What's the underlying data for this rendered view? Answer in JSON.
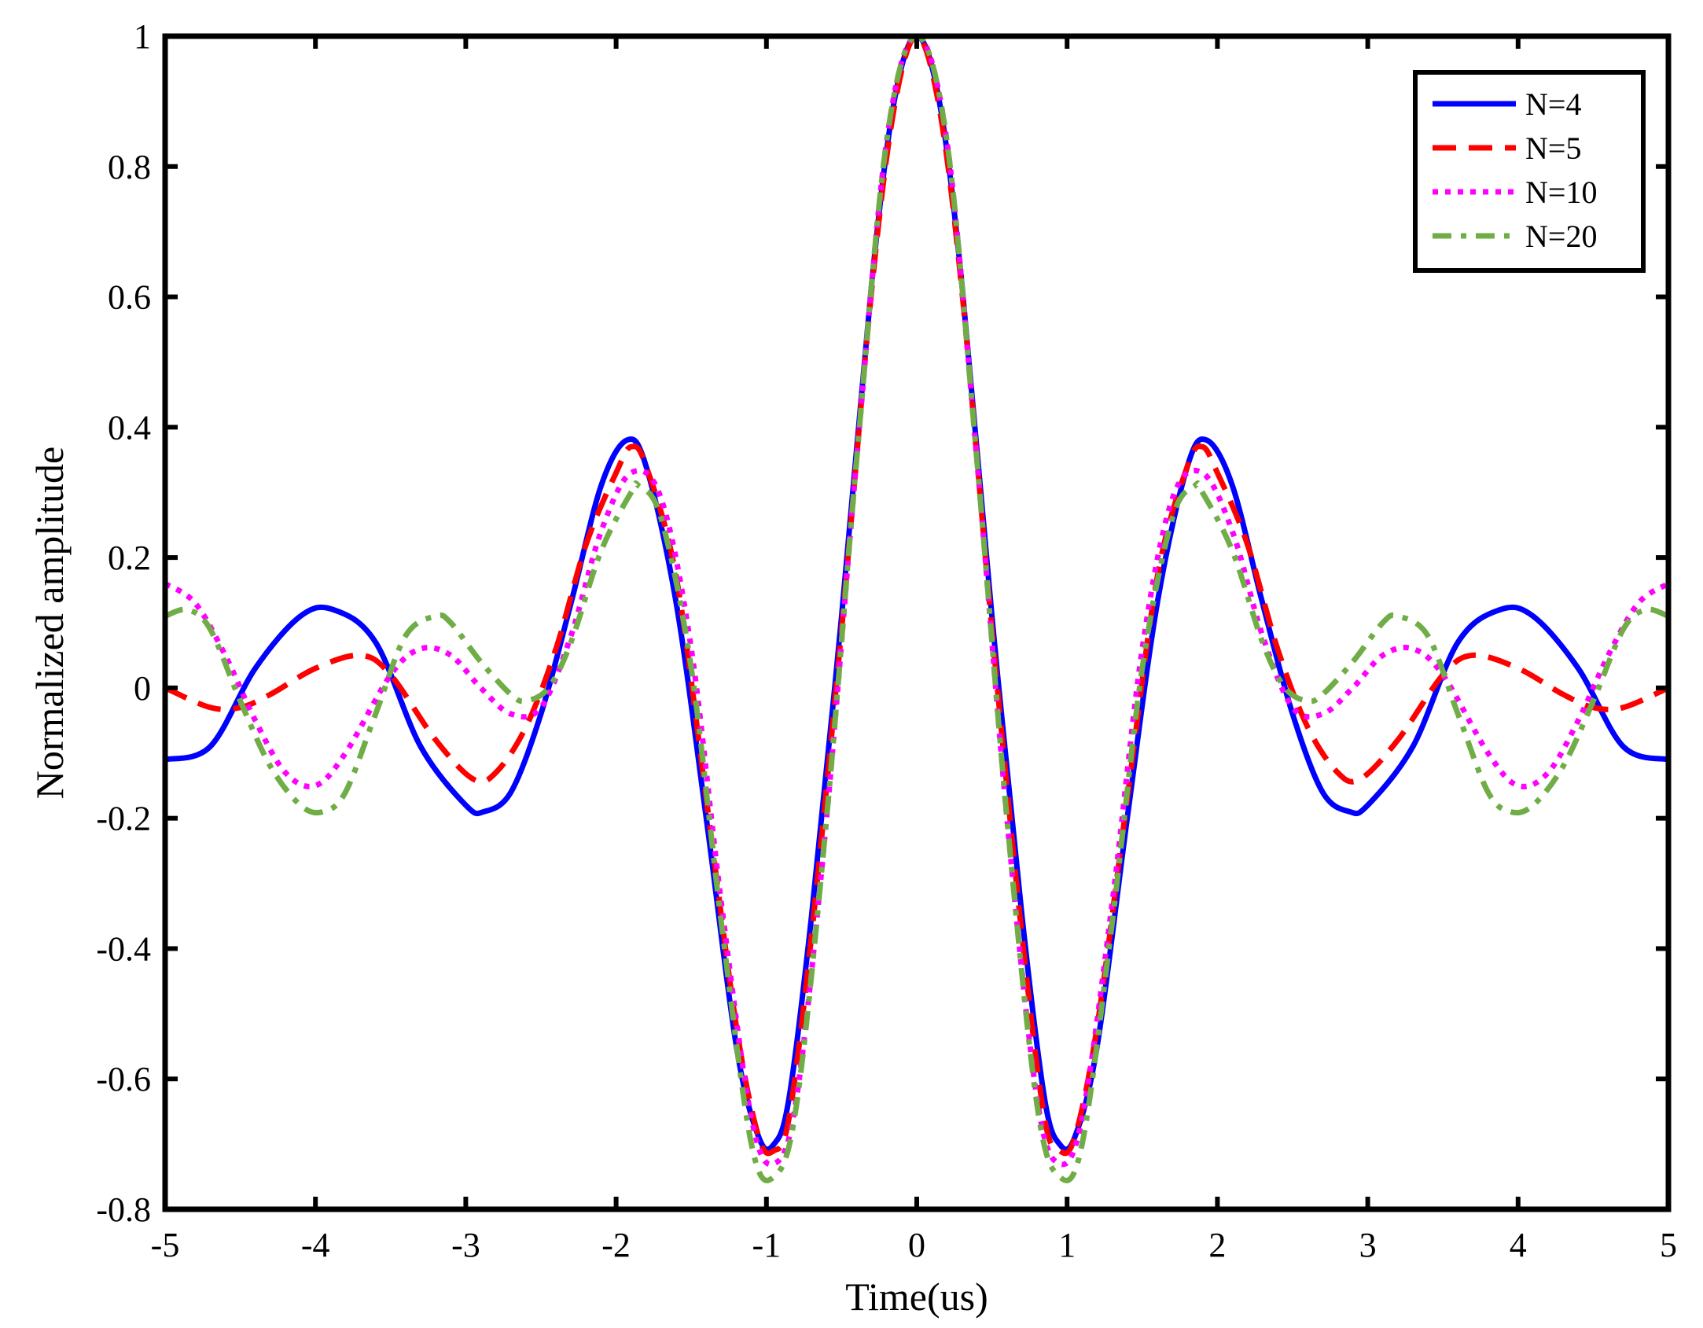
{
  "chart_data": {
    "type": "line",
    "title": "",
    "xlabel": "Time(us)",
    "ylabel": "Normalized amplitude",
    "xlim": [
      -5,
      5
    ],
    "ylim": [
      -0.8,
      1
    ],
    "xticks": [
      -5,
      -4,
      -3,
      -2,
      -1,
      0,
      1,
      2,
      3,
      4,
      5
    ],
    "yticks": [
      -0.8,
      -0.6,
      -0.4,
      -0.2,
      0,
      0.2,
      0.4,
      0.6,
      0.8,
      1
    ],
    "xtick_labels": [
      "-5",
      "-4",
      "-3",
      "-2",
      "-1",
      "0",
      "1",
      "2",
      "3",
      "4",
      "5"
    ],
    "ytick_labels": [
      "-0.8",
      "-0.6",
      "-0.4",
      "-0.2",
      "0",
      "0.2",
      "0.4",
      "0.6",
      "0.8",
      "1"
    ],
    "grid": false,
    "legend_position": "top-right",
    "series": [
      {
        "name": "N=4",
        "color": "#0000ff",
        "style": "solid",
        "x": [
          -5,
          -4.7,
          -4.4,
          -4.1,
          -3.88,
          -3.6,
          -3.3,
          -3.0,
          -2.88,
          -2.7,
          -2.5,
          -2.3,
          -2.1,
          -1.93,
          -1.8,
          -1.6,
          -1.4,
          -1.2,
          -1.05,
          -0.95,
          -0.85,
          -0.7,
          -0.5,
          -0.3,
          -0.15,
          0,
          0.15,
          0.3,
          0.5,
          0.7,
          0.85,
          0.95,
          1.05,
          1.2,
          1.4,
          1.6,
          1.8,
          1.93,
          2.1,
          2.3,
          2.5,
          2.7,
          2.88,
          3.0,
          3.3,
          3.6,
          3.88,
          4.1,
          4.4,
          4.7,
          5
        ],
        "y": [
          -0.11,
          -0.09,
          0.03,
          0.11,
          0.12,
          0.07,
          -0.09,
          -0.18,
          -0.19,
          -0.16,
          -0.04,
          0.13,
          0.31,
          0.38,
          0.34,
          0.13,
          -0.2,
          -0.55,
          -0.69,
          -0.7,
          -0.63,
          -0.35,
          0.11,
          0.62,
          0.9,
          1.0,
          0.9,
          0.62,
          0.11,
          -0.35,
          -0.63,
          -0.7,
          -0.69,
          -0.55,
          -0.2,
          0.13,
          0.34,
          0.38,
          0.31,
          0.13,
          -0.04,
          -0.16,
          -0.19,
          -0.18,
          -0.09,
          0.07,
          0.12,
          0.11,
          0.03,
          -0.09,
          -0.11
        ]
      },
      {
        "name": "N=5",
        "color": "#ff0000",
        "style": "dashed",
        "x": [
          -5,
          -4.7,
          -4.5,
          -4.3,
          -4.0,
          -3.7,
          -3.5,
          -3.2,
          -2.95,
          -2.8,
          -2.6,
          -2.4,
          -2.2,
          -2.0,
          -1.9,
          -1.8,
          -1.6,
          -1.4,
          -1.2,
          -1.05,
          -0.95,
          -0.85,
          -0.7,
          -0.5,
          -0.3,
          -0.15,
          0,
          0.15,
          0.3,
          0.5,
          0.7,
          0.85,
          0.95,
          1.05,
          1.2,
          1.4,
          1.6,
          1.8,
          1.9,
          2.0,
          2.2,
          2.4,
          2.6,
          2.8,
          2.95,
          3.2,
          3.5,
          3.7,
          4.0,
          4.3,
          4.5,
          4.7,
          5
        ],
        "y": [
          0.0,
          -0.03,
          -0.03,
          -0.01,
          0.03,
          0.05,
          0.02,
          -0.08,
          -0.14,
          -0.13,
          -0.06,
          0.06,
          0.22,
          0.33,
          0.37,
          0.34,
          0.17,
          -0.17,
          -0.52,
          -0.69,
          -0.71,
          -0.66,
          -0.38,
          0.09,
          0.61,
          0.89,
          1.0,
          0.89,
          0.61,
          0.09,
          -0.38,
          -0.66,
          -0.71,
          -0.69,
          -0.52,
          -0.17,
          0.17,
          0.34,
          0.37,
          0.33,
          0.22,
          0.06,
          -0.06,
          -0.13,
          -0.14,
          -0.08,
          0.02,
          0.05,
          0.03,
          -0.01,
          -0.03,
          -0.03,
          0.0
        ]
      },
      {
        "name": "N=10",
        "color": "#ff00ff",
        "style": "dotted",
        "x": [
          -5,
          -4.8,
          -4.6,
          -4.4,
          -4.2,
          -4.0,
          -3.8,
          -3.5,
          -3.3,
          -3.1,
          -2.9,
          -2.7,
          -2.5,
          -2.3,
          -2.1,
          -1.9,
          -1.7,
          -1.5,
          -1.3,
          -1.1,
          -0.95,
          -0.8,
          -0.6,
          -0.4,
          -0.2,
          0,
          0.2,
          0.4,
          0.6,
          0.8,
          0.95,
          1.1,
          1.3,
          1.5,
          1.7,
          1.9,
          2.1,
          2.3,
          2.5,
          2.7,
          2.9,
          3.1,
          3.3,
          3.5,
          3.8,
          4.0,
          4.2,
          4.4,
          4.6,
          4.8,
          5
        ],
        "y": [
          0.16,
          0.13,
          0.05,
          -0.05,
          -0.13,
          -0.15,
          -0.1,
          0.02,
          0.06,
          0.05,
          0.0,
          -0.04,
          -0.03,
          0.08,
          0.24,
          0.33,
          0.29,
          0.06,
          -0.33,
          -0.66,
          -0.73,
          -0.63,
          -0.2,
          0.35,
          0.84,
          1.0,
          0.84,
          0.35,
          -0.2,
          -0.63,
          -0.73,
          -0.66,
          -0.33,
          0.06,
          0.29,
          0.33,
          0.24,
          0.08,
          -0.03,
          -0.04,
          0.0,
          0.05,
          0.06,
          0.02,
          -0.1,
          -0.15,
          -0.13,
          -0.05,
          0.05,
          0.13,
          0.16
        ]
      },
      {
        "name": "N=20",
        "color": "#70ad47",
        "style": "dash-dot",
        "x": [
          -5,
          -4.85,
          -4.7,
          -4.5,
          -4.3,
          -4.1,
          -3.95,
          -3.8,
          -3.6,
          -3.4,
          -3.2,
          -3.1,
          -2.9,
          -2.7,
          -2.6,
          -2.45,
          -2.3,
          -2.1,
          -1.9,
          -1.85,
          -1.7,
          -1.5,
          -1.3,
          -1.1,
          -0.95,
          -0.8,
          -0.6,
          -0.4,
          -0.2,
          0,
          0.2,
          0.4,
          0.6,
          0.8,
          0.95,
          1.1,
          1.3,
          1.5,
          1.7,
          1.85,
          1.9,
          2.1,
          2.3,
          2.45,
          2.6,
          2.7,
          2.9,
          3.1,
          3.2,
          3.4,
          3.6,
          3.8,
          3.95,
          4.1,
          4.3,
          4.5,
          4.7,
          4.85,
          5
        ],
        "y": [
          0.11,
          0.12,
          0.09,
          -0.02,
          -0.12,
          -0.18,
          -0.19,
          -0.16,
          -0.04,
          0.08,
          0.11,
          0.1,
          0.04,
          -0.01,
          -0.02,
          0.0,
          0.07,
          0.21,
          0.3,
          0.31,
          0.26,
          0.03,
          -0.36,
          -0.7,
          -0.75,
          -0.64,
          -0.2,
          0.35,
          0.84,
          1.0,
          0.84,
          0.35,
          -0.2,
          -0.64,
          -0.75,
          -0.7,
          -0.36,
          0.03,
          0.26,
          0.31,
          0.3,
          0.21,
          0.07,
          0.0,
          -0.02,
          -0.01,
          0.04,
          0.1,
          0.11,
          0.08,
          -0.04,
          -0.16,
          -0.19,
          -0.18,
          -0.12,
          -0.02,
          0.09,
          0.12,
          0.11
        ]
      }
    ]
  }
}
